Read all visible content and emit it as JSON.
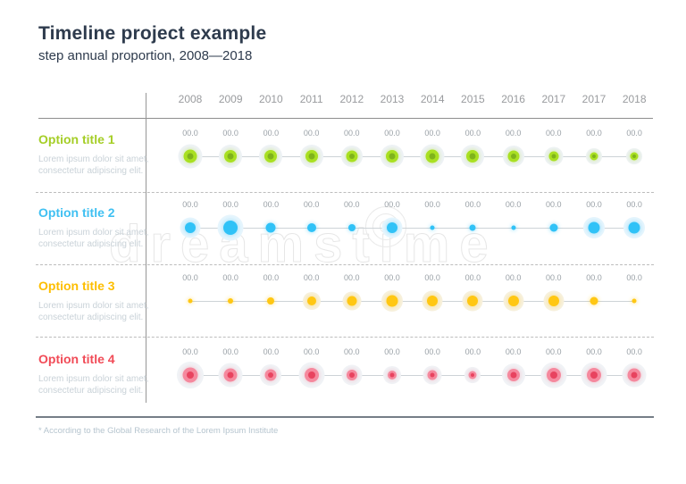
{
  "title": "Timeline project example",
  "subtitle": "step annual proportion, 2008—2018",
  "footnote": "* According to the Global Research of the Lorem Ipsum Institute",
  "watermark": {
    "text": "dreamstime"
  },
  "chart_data": {
    "type": "timeline-bubble",
    "title": "Timeline project example",
    "subtitle": "step annual proportion, 2008—2018",
    "categories": [
      "2008",
      "2009",
      "2010",
      "2011",
      "2012",
      "2013",
      "2014",
      "2015",
      "2016",
      "2017",
      "2017",
      "2018"
    ],
    "point_value_placeholder": "00.0",
    "legend_position": "left-row-labels",
    "grid": "off",
    "series": [
      {
        "name": "Option title 1",
        "description": "Lorem ipsum dolor sit amet, consectetur adipiscing elit.",
        "title_color": "#a5ce27",
        "dot_color": "#a9e022",
        "dot_center_color": "#7fb31b",
        "halo_color": "#eef2f6",
        "halo_min_size": 0,
        "point_labels": [
          "00.0",
          "00.0",
          "00.0",
          "00.0",
          "00.0",
          "00.0",
          "00.0",
          "00.0",
          "00.0",
          "00.0",
          "00.0",
          "00.0"
        ],
        "point_sizes": [
          15,
          14,
          14,
          14,
          13,
          14,
          15,
          14,
          13,
          11,
          9,
          9
        ]
      },
      {
        "name": "Option title 2",
        "description": "Lorem ipsum dolor sit amet, consectetur adipiscing elit.",
        "title_color": "#3fc0f2",
        "dot_color": "#30c2f7",
        "dot_center_color": "",
        "halo_color": "#e6f5fd",
        "halo_min_size": 12,
        "point_labels": [
          "00.0",
          "00.0",
          "00.0",
          "00.0",
          "00.0",
          "00.0",
          "00.0",
          "00.0",
          "00.0",
          "00.0",
          "00.0",
          "00.0"
        ],
        "point_sizes": [
          12,
          16,
          11,
          10,
          8,
          12,
          5,
          7,
          5,
          9,
          13,
          13
        ]
      },
      {
        "name": "Option title 3",
        "description": "Lorem ipsum dolor sit amet, consectetur adipiscing elit.",
        "title_color": "#fdbe00",
        "dot_color": "#ffc713",
        "dot_center_color": "",
        "halo_color": "#f7f1de",
        "halo_min_size": 10,
        "point_labels": [
          "00.0",
          "00.0",
          "00.0",
          "00.0",
          "00.0",
          "00.0",
          "00.0",
          "00.0",
          "00.0",
          "00.0",
          "00.0",
          "00.0"
        ],
        "point_sizes": [
          5,
          6,
          8,
          10,
          11,
          13,
          12,
          12,
          12,
          12,
          9,
          5
        ]
      },
      {
        "name": "Option title 4",
        "description": "Lorem ipsum dolor sit amet, consectetur adipiscing elit.",
        "title_color": "#f14b57",
        "dot_color": "#f5899e",
        "dot_center_color": "#e8435f",
        "halo_color": "#f0f3f6",
        "halo_min_size": 0,
        "point_labels": [
          "00.0",
          "00.0",
          "00.0",
          "00.0",
          "00.0",
          "00.0",
          "00.0",
          "00.0",
          "00.0",
          "00.0",
          "00.0",
          "00.0"
        ],
        "point_sizes": [
          17,
          15,
          13,
          16,
          12,
          10,
          11,
          9,
          14,
          16,
          16,
          15
        ]
      }
    ]
  }
}
